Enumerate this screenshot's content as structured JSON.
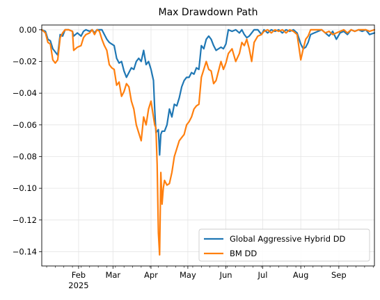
{
  "chart_data": {
    "type": "line",
    "title": "Max Drawdown Path",
    "xlabel": "",
    "ylabel": "",
    "x_ticks": [
      {
        "date": "2025-02-01",
        "label": "Feb",
        "sublabel": "2025"
      },
      {
        "date": "2025-03-01",
        "label": "Mar",
        "sublabel": ""
      },
      {
        "date": "2025-04-01",
        "label": "Apr",
        "sublabel": ""
      },
      {
        "date": "2025-05-01",
        "label": "May",
        "sublabel": ""
      },
      {
        "date": "2025-06-01",
        "label": "Jun",
        "sublabel": ""
      },
      {
        "date": "2025-07-01",
        "label": "Jul",
        "sublabel": ""
      },
      {
        "date": "2025-08-01",
        "label": "Aug",
        "sublabel": ""
      },
      {
        "date": "2025-09-01",
        "label": "Sep",
        "sublabel": ""
      }
    ],
    "y_ticks": [
      "0.00",
      "−0.02",
      "−0.04",
      "−0.06",
      "−0.08",
      "−0.10",
      "−0.12",
      "−0.14"
    ],
    "y_tick_values": [
      0.0,
      -0.02,
      -0.04,
      -0.06,
      -0.08,
      -0.1,
      -0.12,
      -0.14
    ],
    "xlim": [
      "2025-01-02",
      "2025-09-30"
    ],
    "ylim": [
      -0.149,
      0.003
    ],
    "grid": true,
    "legend_position": "lower-right",
    "series": [
      {
        "name": "Global Aggressive Hybrid DD",
        "color": "#1f77b4",
        "points": [
          [
            "2025-01-02",
            0.0
          ],
          [
            "2025-01-05",
            -0.001
          ],
          [
            "2025-01-07",
            -0.006
          ],
          [
            "2025-01-09",
            -0.007
          ],
          [
            "2025-01-11",
            -0.012
          ],
          [
            "2025-01-13",
            -0.014
          ],
          [
            "2025-01-15",
            -0.016
          ],
          [
            "2025-01-17",
            -0.003
          ],
          [
            "2025-01-19",
            -0.004
          ],
          [
            "2025-01-21",
            0.0
          ],
          [
            "2025-01-24",
            0.0
          ],
          [
            "2025-01-27",
            -0.001
          ],
          [
            "2025-01-28",
            -0.004
          ],
          [
            "2025-01-31",
            -0.002
          ],
          [
            "2025-02-03",
            -0.004
          ],
          [
            "2025-02-05",
            -0.001
          ],
          [
            "2025-02-07",
            0.0
          ],
          [
            "2025-02-10",
            -0.001
          ],
          [
            "2025-02-12",
            0.0
          ],
          [
            "2025-02-14",
            -0.002
          ],
          [
            "2025-02-16",
            0.0
          ],
          [
            "2025-02-18",
            0.0
          ],
          [
            "2025-02-20",
            0.0
          ],
          [
            "2025-02-22",
            -0.003
          ],
          [
            "2025-02-24",
            -0.006
          ],
          [
            "2025-02-26",
            -0.008
          ],
          [
            "2025-02-28",
            -0.009
          ],
          [
            "2025-03-02",
            -0.01
          ],
          [
            "2025-03-04",
            -0.018
          ],
          [
            "2025-03-06",
            -0.021
          ],
          [
            "2025-03-08",
            -0.02
          ],
          [
            "2025-03-10",
            -0.026
          ],
          [
            "2025-03-12",
            -0.03
          ],
          [
            "2025-03-14",
            -0.027
          ],
          [
            "2025-03-16",
            -0.024
          ],
          [
            "2025-03-18",
            -0.025
          ],
          [
            "2025-03-20",
            -0.02
          ],
          [
            "2025-03-22",
            -0.018
          ],
          [
            "2025-03-24",
            -0.02
          ],
          [
            "2025-03-26",
            -0.013
          ],
          [
            "2025-03-28",
            -0.022
          ],
          [
            "2025-03-30",
            -0.02
          ],
          [
            "2025-04-01",
            -0.025
          ],
          [
            "2025-04-03",
            -0.032
          ],
          [
            "2025-04-04",
            -0.05
          ],
          [
            "2025-04-05",
            -0.065
          ],
          [
            "2025-04-07",
            -0.063
          ],
          [
            "2025-04-08",
            -0.079
          ],
          [
            "2025-04-09",
            -0.066
          ],
          [
            "2025-04-10",
            -0.064
          ],
          [
            "2025-04-12",
            -0.064
          ],
          [
            "2025-04-14",
            -0.06
          ],
          [
            "2025-04-16",
            -0.05
          ],
          [
            "2025-04-18",
            -0.055
          ],
          [
            "2025-04-20",
            -0.047
          ],
          [
            "2025-04-22",
            -0.048
          ],
          [
            "2025-04-24",
            -0.043
          ],
          [
            "2025-04-26",
            -0.036
          ],
          [
            "2025-04-28",
            -0.032
          ],
          [
            "2025-04-30",
            -0.03
          ],
          [
            "2025-05-02",
            -0.03
          ],
          [
            "2025-05-04",
            -0.027
          ],
          [
            "2025-05-06",
            -0.028
          ],
          [
            "2025-05-08",
            -0.024
          ],
          [
            "2025-05-10",
            -0.025
          ],
          [
            "2025-05-12",
            -0.01
          ],
          [
            "2025-05-14",
            -0.012
          ],
          [
            "2025-05-16",
            -0.006
          ],
          [
            "2025-05-18",
            -0.004
          ],
          [
            "2025-05-20",
            -0.006
          ],
          [
            "2025-05-22",
            -0.01
          ],
          [
            "2025-05-24",
            -0.013
          ],
          [
            "2025-05-26",
            -0.012
          ],
          [
            "2025-05-28",
            -0.011
          ],
          [
            "2025-05-30",
            -0.012
          ],
          [
            "2025-06-01",
            -0.009
          ],
          [
            "2025-06-03",
            0.0
          ],
          [
            "2025-06-06",
            -0.001
          ],
          [
            "2025-06-09",
            0.0
          ],
          [
            "2025-06-12",
            -0.002
          ],
          [
            "2025-06-14",
            0.0
          ],
          [
            "2025-06-16",
            -0.003
          ],
          [
            "2025-06-18",
            -0.005
          ],
          [
            "2025-06-20",
            -0.004
          ],
          [
            "2025-06-22",
            -0.002
          ],
          [
            "2025-06-24",
            0.0
          ],
          [
            "2025-06-27",
            0.0
          ],
          [
            "2025-06-30",
            -0.003
          ],
          [
            "2025-07-02",
            0.0
          ],
          [
            "2025-07-05",
            -0.002
          ],
          [
            "2025-07-08",
            0.0
          ],
          [
            "2025-07-11",
            -0.001
          ],
          [
            "2025-07-14",
            0.0
          ],
          [
            "2025-07-17",
            -0.002
          ],
          [
            "2025-07-20",
            0.0
          ],
          [
            "2025-07-23",
            -0.001
          ],
          [
            "2025-07-26",
            0.0
          ],
          [
            "2025-07-29",
            -0.002
          ],
          [
            "2025-08-01",
            -0.009
          ],
          [
            "2025-08-03",
            -0.012
          ],
          [
            "2025-08-05",
            -0.011
          ],
          [
            "2025-08-07",
            -0.008
          ],
          [
            "2025-08-09",
            -0.003
          ],
          [
            "2025-08-12",
            -0.002
          ],
          [
            "2025-08-15",
            -0.001
          ],
          [
            "2025-08-18",
            0.0
          ],
          [
            "2025-08-21",
            -0.002
          ],
          [
            "2025-08-24",
            -0.004
          ],
          [
            "2025-08-27",
            -0.001
          ],
          [
            "2025-08-30",
            -0.006
          ],
          [
            "2025-09-02",
            -0.002
          ],
          [
            "2025-09-05",
            -0.001
          ],
          [
            "2025-09-08",
            -0.003
          ],
          [
            "2025-09-11",
            0.0
          ],
          [
            "2025-09-14",
            -0.001
          ],
          [
            "2025-09-17",
            0.0
          ],
          [
            "2025-09-20",
            -0.001
          ],
          [
            "2025-09-23",
            0.0
          ],
          [
            "2025-09-26",
            -0.003
          ],
          [
            "2025-09-30",
            -0.002
          ]
        ]
      },
      {
        "name": "BM DD",
        "color": "#ff7f0e",
        "points": [
          [
            "2025-01-02",
            0.0
          ],
          [
            "2025-01-05",
            -0.002
          ],
          [
            "2025-01-07",
            -0.008
          ],
          [
            "2025-01-09",
            -0.009
          ],
          [
            "2025-01-11",
            -0.019
          ],
          [
            "2025-01-13",
            -0.021
          ],
          [
            "2025-01-15",
            -0.019
          ],
          [
            "2025-01-17",
            -0.005
          ],
          [
            "2025-01-19",
            -0.002
          ],
          [
            "2025-01-21",
            0.0
          ],
          [
            "2025-01-24",
            0.0
          ],
          [
            "2025-01-27",
            -0.001
          ],
          [
            "2025-01-28",
            -0.013
          ],
          [
            "2025-01-31",
            -0.011
          ],
          [
            "2025-02-03",
            -0.01
          ],
          [
            "2025-02-05",
            -0.005
          ],
          [
            "2025-02-07",
            -0.003
          ],
          [
            "2025-02-10",
            -0.002
          ],
          [
            "2025-02-12",
            0.0
          ],
          [
            "2025-02-14",
            -0.003
          ],
          [
            "2025-02-16",
            0.0
          ],
          [
            "2025-02-18",
            -0.001
          ],
          [
            "2025-02-20",
            -0.006
          ],
          [
            "2025-02-22",
            -0.01
          ],
          [
            "2025-02-24",
            -0.013
          ],
          [
            "2025-02-26",
            -0.022
          ],
          [
            "2025-02-28",
            -0.024
          ],
          [
            "2025-03-02",
            -0.025
          ],
          [
            "2025-03-04",
            -0.035
          ],
          [
            "2025-03-06",
            -0.033
          ],
          [
            "2025-03-08",
            -0.042
          ],
          [
            "2025-03-10",
            -0.039
          ],
          [
            "2025-03-12",
            -0.034
          ],
          [
            "2025-03-14",
            -0.036
          ],
          [
            "2025-03-16",
            -0.045
          ],
          [
            "2025-03-18",
            -0.05
          ],
          [
            "2025-03-20",
            -0.06
          ],
          [
            "2025-03-22",
            -0.065
          ],
          [
            "2025-03-24",
            -0.07
          ],
          [
            "2025-03-26",
            -0.055
          ],
          [
            "2025-03-28",
            -0.06
          ],
          [
            "2025-03-30",
            -0.05
          ],
          [
            "2025-04-01",
            -0.045
          ],
          [
            "2025-04-03",
            -0.055
          ],
          [
            "2025-04-04",
            -0.06
          ],
          [
            "2025-04-05",
            -0.062
          ],
          [
            "2025-04-06",
            -0.085
          ],
          [
            "2025-04-07",
            -0.128
          ],
          [
            "2025-04-08",
            -0.142
          ],
          [
            "2025-04-09",
            -0.09
          ],
          [
            "2025-04-10",
            -0.11
          ],
          [
            "2025-04-11",
            -0.1
          ],
          [
            "2025-04-12",
            -0.095
          ],
          [
            "2025-04-14",
            -0.098
          ],
          [
            "2025-04-16",
            -0.097
          ],
          [
            "2025-04-18",
            -0.09
          ],
          [
            "2025-04-20",
            -0.08
          ],
          [
            "2025-04-22",
            -0.075
          ],
          [
            "2025-04-24",
            -0.07
          ],
          [
            "2025-04-26",
            -0.068
          ],
          [
            "2025-04-28",
            -0.066
          ],
          [
            "2025-04-30",
            -0.06
          ],
          [
            "2025-05-02",
            -0.058
          ],
          [
            "2025-05-04",
            -0.055
          ],
          [
            "2025-05-06",
            -0.05
          ],
          [
            "2025-05-08",
            -0.048
          ],
          [
            "2025-05-10",
            -0.047
          ],
          [
            "2025-05-12",
            -0.03
          ],
          [
            "2025-05-14",
            -0.025
          ],
          [
            "2025-05-16",
            -0.02
          ],
          [
            "2025-05-18",
            -0.025
          ],
          [
            "2025-05-20",
            -0.026
          ],
          [
            "2025-05-22",
            -0.034
          ],
          [
            "2025-05-24",
            -0.032
          ],
          [
            "2025-05-26",
            -0.026
          ],
          [
            "2025-05-28",
            -0.02
          ],
          [
            "2025-05-30",
            -0.025
          ],
          [
            "2025-06-01",
            -0.021
          ],
          [
            "2025-06-03",
            -0.015
          ],
          [
            "2025-06-06",
            -0.012
          ],
          [
            "2025-06-09",
            -0.02
          ],
          [
            "2025-06-12",
            -0.015
          ],
          [
            "2025-06-14",
            -0.008
          ],
          [
            "2025-06-16",
            -0.01
          ],
          [
            "2025-06-18",
            -0.006
          ],
          [
            "2025-06-20",
            -0.012
          ],
          [
            "2025-06-22",
            -0.02
          ],
          [
            "2025-06-24",
            -0.008
          ],
          [
            "2025-06-27",
            -0.004
          ],
          [
            "2025-06-30",
            -0.003
          ],
          [
            "2025-07-02",
            -0.001
          ],
          [
            "2025-07-05",
            0.0
          ],
          [
            "2025-07-08",
            -0.002
          ],
          [
            "2025-07-11",
            0.0
          ],
          [
            "2025-07-14",
            -0.001
          ],
          [
            "2025-07-17",
            0.0
          ],
          [
            "2025-07-20",
            -0.002
          ],
          [
            "2025-07-23",
            0.0
          ],
          [
            "2025-07-26",
            -0.001
          ],
          [
            "2025-07-29",
            -0.003
          ],
          [
            "2025-08-01",
            -0.019
          ],
          [
            "2025-08-03",
            -0.012
          ],
          [
            "2025-08-05",
            -0.006
          ],
          [
            "2025-08-07",
            -0.004
          ],
          [
            "2025-08-09",
            0.0
          ],
          [
            "2025-08-12",
            0.0
          ],
          [
            "2025-08-15",
            0.0
          ],
          [
            "2025-08-18",
            0.0
          ],
          [
            "2025-08-21",
            -0.002
          ],
          [
            "2025-08-24",
            -0.001
          ],
          [
            "2025-08-27",
            -0.003
          ],
          [
            "2025-08-30",
            -0.002
          ],
          [
            "2025-09-02",
            -0.001
          ],
          [
            "2025-09-05",
            0.0
          ],
          [
            "2025-09-08",
            -0.002
          ],
          [
            "2025-09-11",
            0.0
          ],
          [
            "2025-09-14",
            -0.001
          ],
          [
            "2025-09-17",
            0.0
          ],
          [
            "2025-09-20",
            0.0
          ],
          [
            "2025-09-23",
            0.0
          ],
          [
            "2025-09-26",
            -0.001
          ],
          [
            "2025-09-30",
            0.0
          ]
        ]
      }
    ]
  }
}
